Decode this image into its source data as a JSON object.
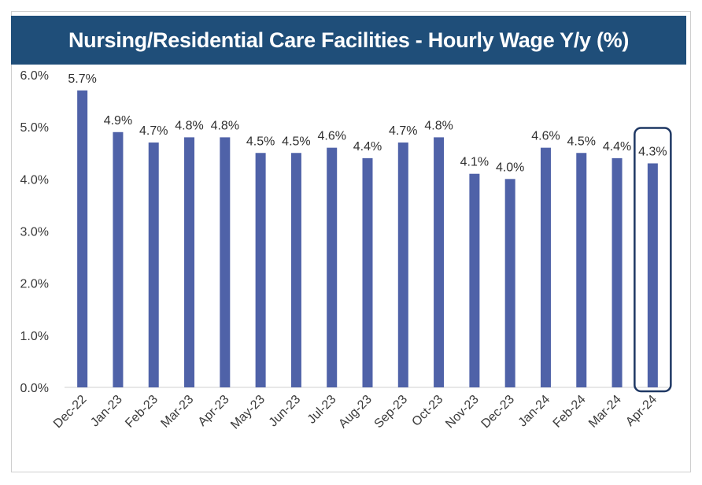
{
  "colors": {
    "title_bg": "#1f4e79",
    "title_text": "#ffffff",
    "bar": "#4f62a8",
    "highlight_box": "#1f3864",
    "axis_text": "#3a3a3a",
    "label_text": "#303030"
  },
  "chart_data": {
    "type": "bar",
    "title": "Nursing/Residential Care Facilities - Hourly Wage Y/y (%)",
    "xlabel": "",
    "ylabel": "",
    "ylim": [
      0,
      6
    ],
    "y_ticks": [
      "0.0%",
      "1.0%",
      "2.0%",
      "3.0%",
      "4.0%",
      "5.0%",
      "6.0%"
    ],
    "grid": false,
    "categories": [
      "Dec-22",
      "Jan-23",
      "Feb-23",
      "Mar-23",
      "Apr-23",
      "May-23",
      "Jun-23",
      "Jul-23",
      "Aug-23",
      "Sep-23",
      "Oct-23",
      "Nov-23",
      "Dec-23",
      "Jan-24",
      "Feb-24",
      "Mar-24",
      "Apr-24"
    ],
    "values": [
      5.7,
      4.9,
      4.7,
      4.8,
      4.8,
      4.5,
      4.5,
      4.6,
      4.4,
      4.7,
      4.8,
      4.1,
      4.0,
      4.6,
      4.5,
      4.4,
      4.3
    ],
    "data_labels": [
      "5.7%",
      "4.9%",
      "4.7%",
      "4.8%",
      "4.8%",
      "4.5%",
      "4.5%",
      "4.6%",
      "4.4%",
      "4.7%",
      "4.8%",
      "4.1%",
      "4.0%",
      "4.6%",
      "4.5%",
      "4.4%",
      "4.3%"
    ],
    "highlighted_category": "Apr-24"
  }
}
